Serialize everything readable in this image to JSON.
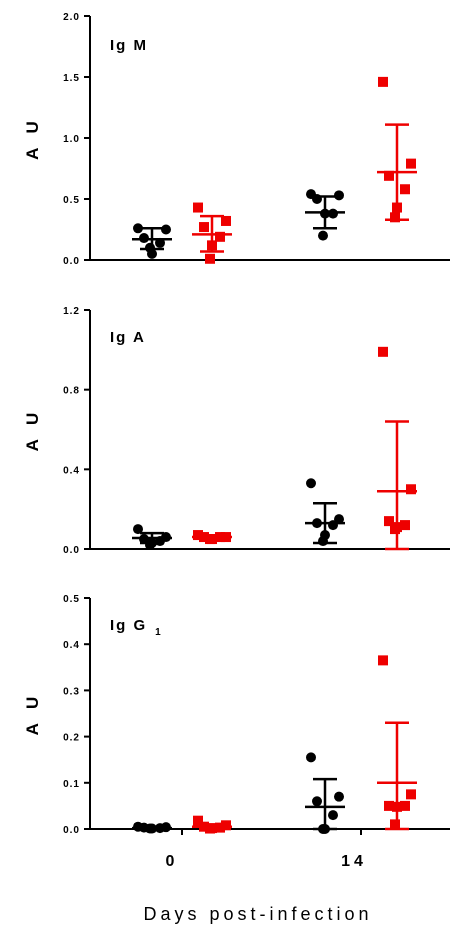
{
  "chart_data": [
    {
      "type": "scatter",
      "title": "Ig M",
      "subscript": "",
      "ylabel": "A U",
      "ylim": [
        0,
        2.0
      ],
      "yticks": [
        "0.0",
        "0.5",
        "1.0",
        "1.5",
        "2.0"
      ],
      "yticks_values": [
        0,
        0.5,
        1.0,
        1.5,
        2.0
      ],
      "groups": [
        {
          "x": "0",
          "color": "#000000",
          "marker": "circle",
          "points": [
            0.26,
            0.25,
            0.18,
            0.14,
            0.05,
            0.1
          ],
          "mean": 0.17,
          "sd_low": 0.09,
          "sd_high": 0.26
        },
        {
          "x": "0",
          "color": "#ee0000",
          "marker": "square",
          "points": [
            0.43,
            0.32,
            0.27,
            0.19,
            0.12,
            0.01
          ],
          "mean": 0.21,
          "sd_low": 0.07,
          "sd_high": 0.36
        },
        {
          "x": "14",
          "color": "#000000",
          "marker": "circle",
          "points": [
            0.54,
            0.53,
            0.5,
            0.38,
            0.38,
            0.2
          ],
          "mean": 0.39,
          "sd_low": 0.26,
          "sd_high": 0.52
        },
        {
          "x": "14",
          "color": "#ee0000",
          "marker": "square",
          "points": [
            1.46,
            0.79,
            0.69,
            0.58,
            0.43,
            0.35
          ],
          "mean": 0.72,
          "sd_low": 0.33,
          "sd_high": 1.11
        }
      ]
    },
    {
      "type": "scatter",
      "title": "Ig A",
      "subscript": "",
      "ylabel": "A U",
      "ylim": [
        0,
        1.2
      ],
      "yticks": [
        "0.0",
        "0.4",
        "0.8",
        "1.2"
      ],
      "yticks_values": [
        0,
        0.4,
        0.8,
        1.2
      ],
      "groups": [
        {
          "x": "0",
          "color": "#000000",
          "marker": "circle",
          "points": [
            0.1,
            0.06,
            0.05,
            0.04,
            0.03,
            0.02
          ],
          "mean": 0.055,
          "sd_low": 0.03,
          "sd_high": 0.08
        },
        {
          "x": "0",
          "color": "#ee0000",
          "marker": "square",
          "points": [
            0.07,
            0.06,
            0.06,
            0.06,
            0.05,
            0.05
          ],
          "mean": 0.06,
          "sd_low": 0.06,
          "sd_high": 0.06
        },
        {
          "x": "14",
          "color": "#000000",
          "marker": "circle",
          "points": [
            0.33,
            0.15,
            0.13,
            0.12,
            0.07,
            0.04
          ],
          "mean": 0.13,
          "sd_low": 0.03,
          "sd_high": 0.23
        },
        {
          "x": "14",
          "color": "#ee0000",
          "marker": "square",
          "points": [
            0.99,
            0.3,
            0.14,
            0.12,
            0.11,
            0.1
          ],
          "mean": 0.29,
          "sd_low": 0.0,
          "sd_high": 0.64
        }
      ]
    },
    {
      "type": "scatter",
      "title": "Ig G",
      "subscript": "1",
      "ylabel": "A U",
      "ylim": [
        0,
        0.5
      ],
      "yticks": [
        "0.0",
        "0.1",
        "0.2",
        "0.3",
        "0.4",
        "0.5"
      ],
      "yticks_values": [
        0,
        0.1,
        0.2,
        0.3,
        0.4,
        0.5
      ],
      "groups": [
        {
          "x": "0",
          "color": "#000000",
          "marker": "circle",
          "points": [
            0.005,
            0.004,
            0.003,
            0.002,
            0.001,
            0.001
          ],
          "mean": 0.002,
          "sd_low": 0.0,
          "sd_high": 0.004
        },
        {
          "x": "0",
          "color": "#ee0000",
          "marker": "square",
          "points": [
            0.018,
            0.008,
            0.005,
            0.003,
            0.002,
            0.001
          ],
          "mean": 0.005,
          "sd_low": 0.0,
          "sd_high": 0.008
        },
        {
          "x": "14",
          "color": "#000000",
          "marker": "circle",
          "points": [
            0.155,
            0.07,
            0.06,
            0.03,
            0.0,
            0.0
          ],
          "mean": 0.048,
          "sd_low": 0.0,
          "sd_high": 0.108
        },
        {
          "x": "14",
          "color": "#ee0000",
          "marker": "square",
          "points": [
            0.365,
            0.075,
            0.05,
            0.05,
            0.048,
            0.01
          ],
          "mean": 0.1,
          "sd_low": 0.0,
          "sd_high": 0.23
        }
      ]
    }
  ],
  "x_categories": [
    "0",
    "14"
  ],
  "xlabel": "Days post-infection"
}
